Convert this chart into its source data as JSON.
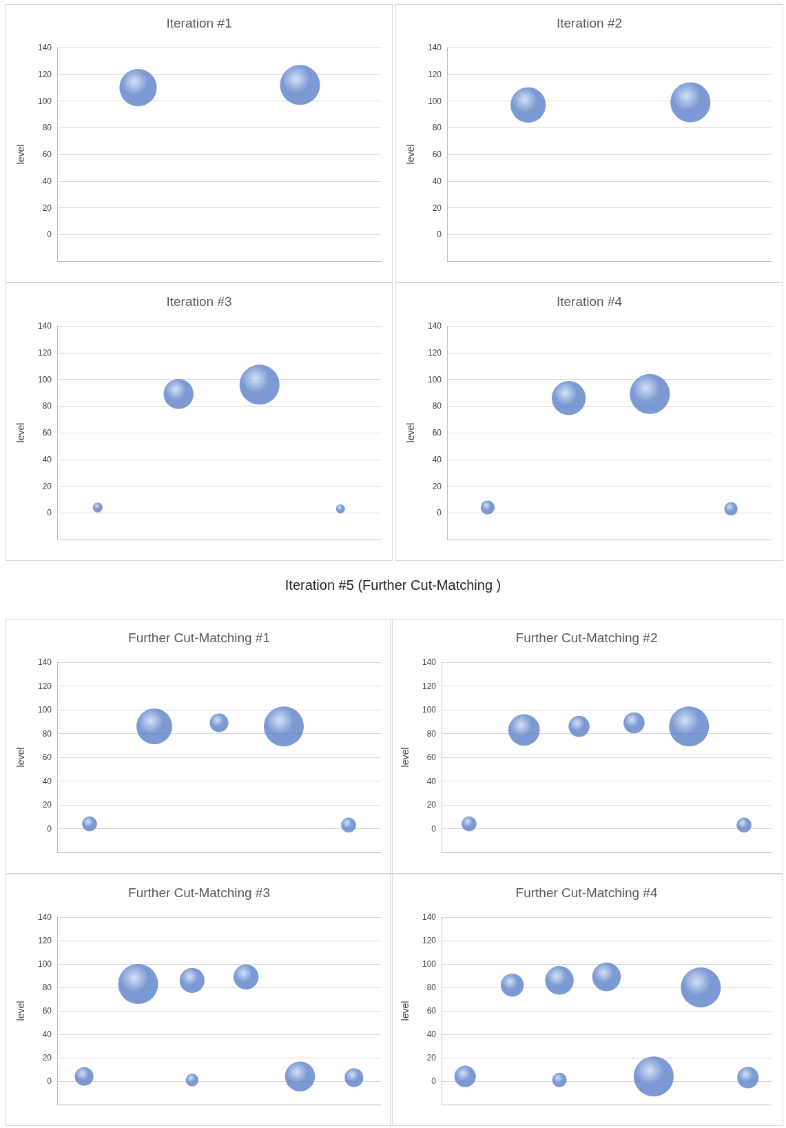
{
  "chart_data": [
    {
      "type": "bubble",
      "title": "Iteration #1",
      "ylabel": "level",
      "categories": [
        null,
        null
      ],
      "series": [
        {
          "color": "#5b80c8",
          "values": [
            110,
            112
          ],
          "sizes": [
            0.87,
            1
          ]
        }
      ],
      "ylim": [
        -20,
        140
      ],
      "yticks": [
        0,
        20,
        40,
        60,
        80,
        100,
        120,
        140
      ],
      "grid": "y",
      "tick_labels": "y"
    },
    {
      "type": "bubble",
      "title": "Iteration #2",
      "ylabel": "level",
      "categories": [
        null,
        null
      ],
      "series": [
        {
          "color": "#5b80c8",
          "values": [
            97,
            99
          ],
          "sizes": [
            0.78,
            1
          ]
        }
      ],
      "ylim": [
        -20,
        140
      ],
      "yticks": [
        0,
        20,
        40,
        60,
        80,
        100,
        120,
        140
      ],
      "grid": "y",
      "tick_labels": "y"
    },
    {
      "type": "bubble",
      "title": "Iteration #3",
      "ylabel": "level",
      "categories": [
        null,
        null,
        null,
        null
      ],
      "series": [
        {
          "color": "#5b80c8",
          "values": [
            4,
            89,
            96,
            3
          ],
          "sizes": [
            0.06,
            0.56,
            1,
            0.05
          ]
        }
      ],
      "ylim": [
        -20,
        140
      ],
      "yticks": [
        0,
        20,
        40,
        60,
        80,
        100,
        120,
        140
      ],
      "grid": "y",
      "tick_labels": "y"
    },
    {
      "type": "bubble",
      "title": "Iteration #4",
      "ylabel": "level",
      "categories": [
        null,
        null,
        null,
        null
      ],
      "series": [
        {
          "color": "#5b80c8",
          "values": [
            4,
            86,
            89,
            3
          ],
          "sizes": [
            0.12,
            0.72,
            1,
            0.11
          ]
        }
      ],
      "ylim": [
        -20,
        140
      ],
      "yticks": [
        0,
        20,
        40,
        60,
        80,
        100,
        120,
        140
      ],
      "grid": "y",
      "tick_labels": "y"
    },
    {
      "type": "bubble",
      "title": "Further Cut-Matching #1",
      "annotations": [
        "Iteration #5  (Further Cut-Matching )"
      ],
      "ylabel": "level",
      "categories": [
        null,
        null,
        null,
        null,
        null
      ],
      "series": [
        {
          "color": "#5b80c8",
          "values": [
            4,
            86,
            89,
            86,
            3
          ],
          "sizes": [
            0.14,
            0.8,
            0.22,
            1,
            0.14
          ]
        }
      ],
      "ylim": [
        -20,
        140
      ],
      "yticks": [
        0,
        20,
        40,
        60,
        80,
        100,
        120,
        140
      ],
      "grid": "y",
      "tick_labels": "y"
    },
    {
      "type": "bubble",
      "title": "Further Cut-Matching #2",
      "ylabel": "level",
      "categories": [
        null,
        null,
        null,
        null,
        null,
        null
      ],
      "series": [
        {
          "color": "#5b80c8",
          "values": [
            4,
            83,
            86,
            89,
            86,
            3
          ],
          "sizes": [
            0.14,
            0.62,
            0.28,
            0.28,
            1,
            0.14
          ]
        }
      ],
      "ylim": [
        -20,
        140
      ],
      "yticks": [
        0,
        20,
        40,
        60,
        80,
        100,
        120,
        140
      ],
      "grid": "y",
      "tick_labels": "y"
    },
    {
      "type": "bubble",
      "title": "Further Cut-Matching #3",
      "ylabel": "level",
      "categories": [
        null,
        null,
        null,
        null,
        null,
        null
      ],
      "series": [
        {
          "color": "#5b80c8",
          "values": [
            null,
            83,
            86,
            89,
            null,
            null
          ],
          "sizes": [
            null,
            1,
            0.39,
            0.39,
            null,
            null
          ]
        },
        {
          "color": "#5b80c8",
          "values": [
            4,
            null,
            1,
            null,
            4,
            3
          ],
          "sizes": [
            0.22,
            null,
            0.1,
            null,
            0.56,
            0.22
          ]
        }
      ],
      "ylim": [
        -20,
        140
      ],
      "yticks": [
        0,
        20,
        40,
        60,
        80,
        100,
        120,
        140
      ],
      "grid": "y",
      "tick_labels": "y"
    },
    {
      "type": "bubble",
      "title": "Further Cut-Matching #4",
      "ylabel": "level",
      "categories": [
        null,
        null,
        null,
        null,
        null,
        null,
        null
      ],
      "series": [
        {
          "color": "#5b80c8",
          "values": [
            null,
            82,
            86,
            89,
            null,
            80,
            null
          ],
          "sizes": [
            null,
            0.33,
            0.51,
            0.51,
            null,
            1,
            null
          ]
        },
        {
          "color": "#5b80c8",
          "values": [
            4,
            null,
            1,
            null,
            4,
            null,
            3
          ],
          "sizes": [
            0.29,
            null,
            0.13,
            null,
            1,
            null,
            0.29
          ]
        }
      ],
      "ylim": [
        -20,
        140
      ],
      "yticks": [
        0,
        20,
        40,
        60,
        80,
        100,
        120,
        140
      ],
      "grid": "y",
      "tick_labels": "y"
    }
  ]
}
